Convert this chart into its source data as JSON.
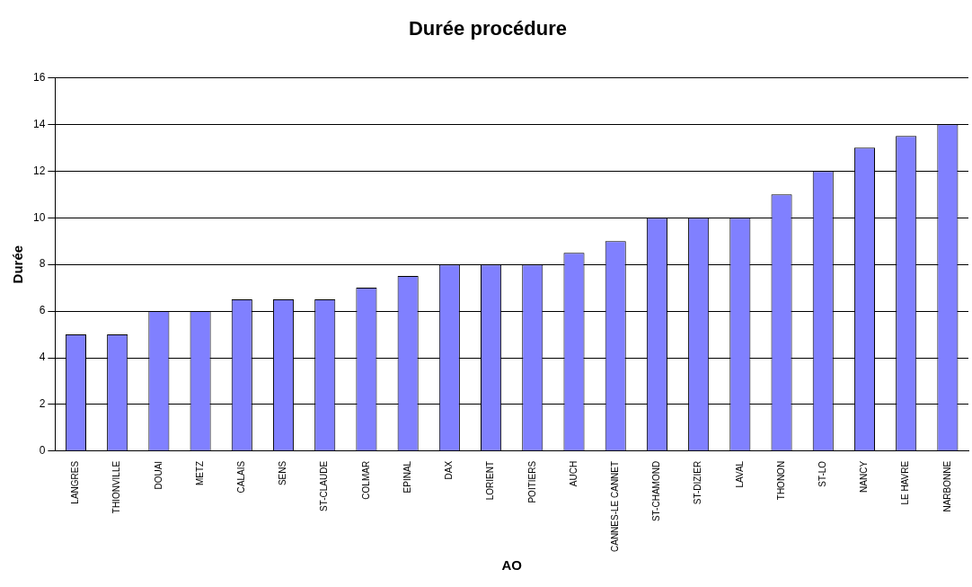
{
  "chart_data": {
    "type": "bar",
    "title": "Durée procédure",
    "xlabel": "AO",
    "ylabel": "Durée",
    "categories": [
      "LANGRES",
      "THIONVILLE",
      "DOUAI",
      "METZ",
      "CALAIS",
      "SENS",
      "ST-CLAUDE",
      "COLMAR",
      "EPINAL",
      "DAX",
      "LORIENT",
      "POITIERS",
      "AUCH",
      "CANNES-LE CANNET",
      "ST-CHAMOND",
      "ST-DIZIER",
      "LAVAL",
      "THONON",
      "ST-LO",
      "NANCY",
      "LE HAVRE",
      "NARBONNE"
    ],
    "values": [
      5,
      5,
      6,
      6,
      6.5,
      6.5,
      6.5,
      7,
      7.5,
      8,
      8,
      8,
      8.5,
      9,
      10,
      10,
      10,
      11,
      12,
      13,
      13.5,
      14
    ],
    "color": "#8080ff",
    "ylim": [
      0,
      16
    ],
    "yticks": [
      0,
      2,
      4,
      6,
      8,
      10,
      12,
      14,
      16
    ],
    "grid": "y",
    "legend": false
  }
}
